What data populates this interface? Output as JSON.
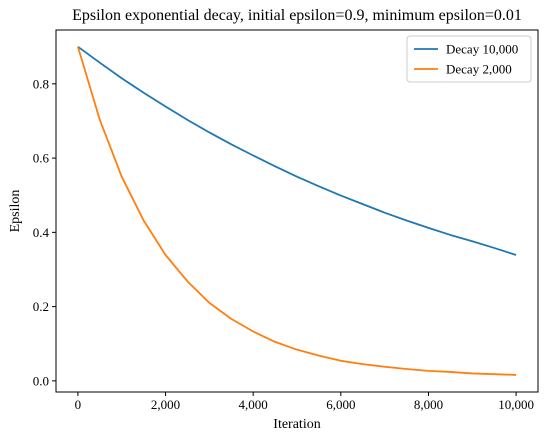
{
  "chart_data": {
    "type": "line",
    "title": "Epsilon exponential decay, initial epsilon=0.9, minimum epsilon=0.01",
    "xlabel": "Iteration",
    "ylabel": "Epsilon",
    "xlim": [
      -500,
      10500
    ],
    "ylim": [
      -0.03,
      0.945
    ],
    "xticks": [
      0,
      2000,
      4000,
      6000,
      8000,
      10000
    ],
    "xtick_labels": [
      "0",
      "2,000",
      "4,000",
      "6,000",
      "8,000",
      "10,000"
    ],
    "yticks": [
      0.0,
      0.2,
      0.4,
      0.6,
      0.8
    ],
    "ytick_labels": [
      "0.0",
      "0.2",
      "0.4",
      "0.6",
      "0.8"
    ],
    "grid": false,
    "legend": "top-right",
    "x": [
      0,
      500,
      1000,
      1500,
      2000,
      2500,
      3000,
      3500,
      4000,
      4500,
      5000,
      5500,
      6000,
      6500,
      7000,
      7500,
      8000,
      8500,
      9000,
      9500,
      10000
    ],
    "series": [
      {
        "name": "Decay 10,000",
        "color": "#1f77b4",
        "values": [
          0.9,
          0.857,
          0.815,
          0.776,
          0.739,
          0.703,
          0.669,
          0.637,
          0.607,
          0.578,
          0.55,
          0.524,
          0.499,
          0.476,
          0.453,
          0.432,
          0.412,
          0.393,
          0.376,
          0.358,
          0.339
        ]
      },
      {
        "name": "Decay 2,000",
        "color": "#ff7f0e",
        "values": [
          0.9,
          0.703,
          0.55,
          0.432,
          0.339,
          0.268,
          0.21,
          0.167,
          0.133,
          0.105,
          0.084,
          0.068,
          0.054,
          0.045,
          0.038,
          0.032,
          0.027,
          0.024,
          0.02,
          0.018,
          0.016
        ]
      }
    ]
  }
}
